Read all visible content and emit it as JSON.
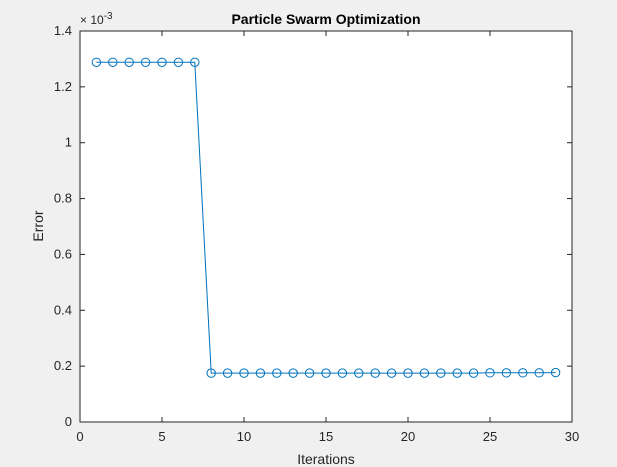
{
  "chart_data": {
    "type": "line",
    "title": "Particle Swarm Optimization",
    "xlabel": "Iterations",
    "ylabel": "Error",
    "exponent_label": {
      "base": "× 10",
      "power": "-3"
    },
    "xlim": [
      0,
      30
    ],
    "ylim": [
      0,
      1.4
    ],
    "x_ticks": [
      0,
      5,
      10,
      15,
      20,
      25,
      30
    ],
    "y_ticks": [
      0,
      0.2,
      0.4,
      0.6,
      0.8,
      1,
      1.2,
      1.4
    ],
    "y_tick_labels": [
      "0",
      "0.2",
      "0.4",
      "0.6",
      "0.8",
      "1",
      "1.2",
      "1.4"
    ],
    "grid": false,
    "marker": "circle",
    "line_color": "#0072bd",
    "series": [
      {
        "x": [
          1,
          2,
          3,
          4,
          5,
          6,
          7,
          8,
          9,
          10,
          11,
          12,
          13,
          14,
          15,
          16,
          17,
          18,
          19,
          20,
          21,
          22,
          23,
          24,
          25,
          26,
          27,
          28,
          29
        ],
        "values": [
          1.288,
          1.288,
          1.288,
          1.288,
          1.288,
          1.288,
          1.288,
          0.175,
          0.175,
          0.175,
          0.175,
          0.175,
          0.175,
          0.175,
          0.175,
          0.175,
          0.175,
          0.175,
          0.175,
          0.175,
          0.175,
          0.175,
          0.175,
          0.175,
          0.176,
          0.176,
          0.176,
          0.176,
          0.177
        ]
      }
    ]
  }
}
